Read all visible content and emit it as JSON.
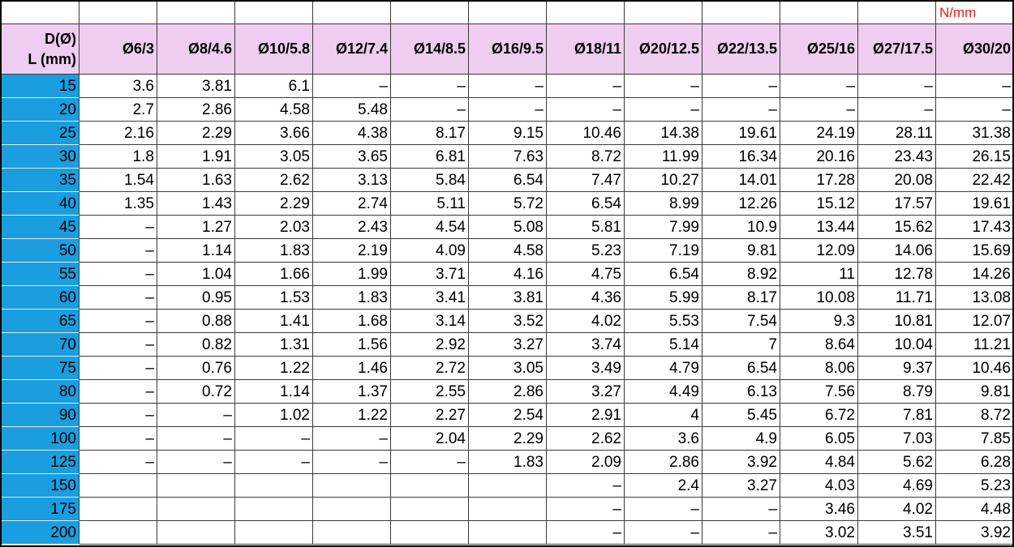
{
  "unit": "N/mm",
  "header": {
    "row_label": "D(Ø)",
    "col_label": "L (mm)",
    "columns": [
      "Ø6/3",
      "Ø8/4.6",
      "Ø10/5.8",
      "Ø12/7.4",
      "Ø14/8.5",
      "Ø16/9.5",
      "Ø18/11",
      "Ø20/12.5",
      "Ø22/13.5",
      "Ø25/16",
      "Ø27/17.5",
      "Ø30/20"
    ]
  },
  "rows": [
    {
      "label": 15,
      "values": [
        3.6,
        3.81,
        6.1,
        "–",
        "–",
        "–",
        "–",
        "–",
        "–",
        "–",
        "–",
        "–"
      ]
    },
    {
      "label": 20,
      "values": [
        2.7,
        2.86,
        4.58,
        5.48,
        "–",
        "–",
        "–",
        "–",
        "–",
        "–",
        "–",
        "–"
      ]
    },
    {
      "label": 25,
      "values": [
        2.16,
        2.29,
        3.66,
        4.38,
        8.17,
        9.15,
        10.46,
        14.38,
        19.61,
        24.19,
        28.11,
        31.38
      ]
    },
    {
      "label": 30,
      "values": [
        1.8,
        1.91,
        3.05,
        3.65,
        6.81,
        7.63,
        8.72,
        11.99,
        16.34,
        20.16,
        23.43,
        26.15
      ]
    },
    {
      "label": 35,
      "values": [
        1.54,
        1.63,
        2.62,
        3.13,
        5.84,
        6.54,
        7.47,
        10.27,
        14.01,
        17.28,
        20.08,
        22.42
      ]
    },
    {
      "label": 40,
      "values": [
        1.35,
        1.43,
        2.29,
        2.74,
        5.11,
        5.72,
        6.54,
        8.99,
        12.26,
        15.12,
        17.57,
        19.61
      ]
    },
    {
      "label": 45,
      "values": [
        "–",
        1.27,
        2.03,
        2.43,
        4.54,
        5.08,
        5.81,
        7.99,
        10.9,
        13.44,
        15.62,
        17.43
      ]
    },
    {
      "label": 50,
      "values": [
        "–",
        1.14,
        1.83,
        2.19,
        4.09,
        4.58,
        5.23,
        7.19,
        9.81,
        12.09,
        14.06,
        15.69
      ]
    },
    {
      "label": 55,
      "values": [
        "–",
        1.04,
        1.66,
        1.99,
        3.71,
        4.16,
        4.75,
        6.54,
        8.92,
        11,
        12.78,
        14.26
      ]
    },
    {
      "label": 60,
      "values": [
        "–",
        0.95,
        1.53,
        1.83,
        3.41,
        3.81,
        4.36,
        5.99,
        8.17,
        10.08,
        11.71,
        13.08
      ]
    },
    {
      "label": 65,
      "values": [
        "–",
        0.88,
        1.41,
        1.68,
        3.14,
        3.52,
        4.02,
        5.53,
        7.54,
        9.3,
        10.81,
        12.07
      ]
    },
    {
      "label": 70,
      "values": [
        "–",
        0.82,
        1.31,
        1.56,
        2.92,
        3.27,
        3.74,
        5.14,
        7,
        8.64,
        10.04,
        11.21
      ]
    },
    {
      "label": 75,
      "values": [
        "–",
        0.76,
        1.22,
        1.46,
        2.72,
        3.05,
        3.49,
        4.79,
        6.54,
        8.06,
        9.37,
        10.46
      ]
    },
    {
      "label": 80,
      "values": [
        "–",
        0.72,
        1.14,
        1.37,
        2.55,
        2.86,
        3.27,
        4.49,
        6.13,
        7.56,
        8.79,
        9.81
      ]
    },
    {
      "label": 90,
      "values": [
        "–",
        "–",
        1.02,
        1.22,
        2.27,
        2.54,
        2.91,
        4,
        5.45,
        6.72,
        7.81,
        8.72
      ]
    },
    {
      "label": 100,
      "values": [
        "–",
        "–",
        "–",
        "–",
        2.04,
        2.29,
        2.62,
        3.6,
        4.9,
        6.05,
        7.03,
        7.85
      ]
    },
    {
      "label": 125,
      "values": [
        "–",
        "–",
        "–",
        "–",
        "–",
        1.83,
        2.09,
        2.86,
        3.92,
        4.84,
        5.62,
        6.28
      ]
    },
    {
      "label": 150,
      "values": [
        null,
        null,
        null,
        null,
        null,
        null,
        "–",
        2.4,
        3.27,
        4.03,
        4.69,
        5.23
      ]
    },
    {
      "label": 175,
      "values": [
        null,
        null,
        null,
        null,
        null,
        null,
        "–",
        "–",
        "–",
        3.46,
        4.02,
        4.48
      ]
    },
    {
      "label": 200,
      "values": [
        null,
        null,
        null,
        null,
        null,
        null,
        "–",
        "–",
        "–",
        3.02,
        3.51,
        3.92
      ]
    }
  ]
}
